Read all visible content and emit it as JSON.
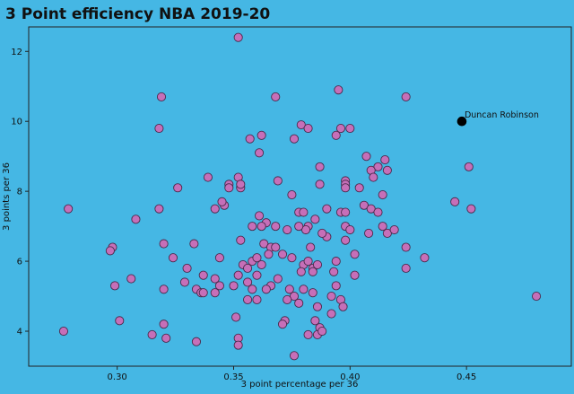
{
  "chart_data": {
    "type": "scatter",
    "title": "3 Point efficiency NBA 2019-20",
    "xlabel": "3 point percentage per 36",
    "ylabel": "3 points per 36",
    "xlim": [
      0.262,
      0.495
    ],
    "ylim": [
      3.0,
      12.7
    ],
    "xticks": [
      {
        "value": 0.3,
        "label": "0.30"
      },
      {
        "value": 0.35,
        "label": "0.35"
      },
      {
        "value": 0.4,
        "label": "0.40"
      },
      {
        "value": 0.45,
        "label": "0.45"
      }
    ],
    "yticks": [
      {
        "value": 4,
        "label": "4"
      },
      {
        "value": 6,
        "label": "6"
      },
      {
        "value": 8,
        "label": "8"
      },
      {
        "value": 10,
        "label": "10"
      },
      {
        "value": 12,
        "label": "12"
      }
    ],
    "grid": false,
    "colors": {
      "background": "#45b7e4",
      "marker": "#c66fb8",
      "marker_edge": "#4a2a4c",
      "highlight": "#000000"
    },
    "highlight": {
      "name": "Duncan Robinson",
      "x": 0.448,
      "y": 10.0
    },
    "points": [
      [
        0.352,
        12.4
      ],
      [
        0.319,
        10.7
      ],
      [
        0.368,
        10.7
      ],
      [
        0.395,
        10.9
      ],
      [
        0.424,
        10.7
      ],
      [
        0.318,
        9.8
      ],
      [
        0.379,
        9.9
      ],
      [
        0.382,
        9.8
      ],
      [
        0.394,
        9.6
      ],
      [
        0.396,
        9.8
      ],
      [
        0.4,
        9.8
      ],
      [
        0.362,
        9.6
      ],
      [
        0.357,
        9.5
      ],
      [
        0.376,
        9.5
      ],
      [
        0.361,
        9.1
      ],
      [
        0.407,
        9.0
      ],
      [
        0.415,
        8.9
      ],
      [
        0.412,
        8.7
      ],
      [
        0.416,
        8.6
      ],
      [
        0.409,
        8.6
      ],
      [
        0.387,
        8.7
      ],
      [
        0.451,
        8.7
      ],
      [
        0.339,
        8.4
      ],
      [
        0.352,
        8.4
      ],
      [
        0.348,
        8.2
      ],
      [
        0.348,
        8.1
      ],
      [
        0.353,
        8.1
      ],
      [
        0.353,
        8.2
      ],
      [
        0.369,
        8.3
      ],
      [
        0.387,
        8.2
      ],
      [
        0.398,
        8.3
      ],
      [
        0.398,
        8.2
      ],
      [
        0.398,
        8.1
      ],
      [
        0.404,
        8.1
      ],
      [
        0.41,
        8.4
      ],
      [
        0.326,
        8.1
      ],
      [
        0.375,
        7.9
      ],
      [
        0.414,
        7.9
      ],
      [
        0.346,
        7.6
      ],
      [
        0.342,
        7.5
      ],
      [
        0.345,
        7.7
      ],
      [
        0.318,
        7.5
      ],
      [
        0.279,
        7.5
      ],
      [
        0.308,
        7.2
      ],
      [
        0.361,
        7.3
      ],
      [
        0.364,
        7.1
      ],
      [
        0.362,
        7.0
      ],
      [
        0.378,
        7.4
      ],
      [
        0.38,
        7.4
      ],
      [
        0.385,
        7.2
      ],
      [
        0.382,
        7.0
      ],
      [
        0.39,
        7.5
      ],
      [
        0.396,
        7.4
      ],
      [
        0.398,
        7.4
      ],
      [
        0.406,
        7.6
      ],
      [
        0.409,
        7.5
      ],
      [
        0.412,
        7.4
      ],
      [
        0.414,
        7.0
      ],
      [
        0.416,
        6.8
      ],
      [
        0.419,
        6.9
      ],
      [
        0.398,
        7.0
      ],
      [
        0.4,
        6.9
      ],
      [
        0.408,
        6.8
      ],
      [
        0.39,
        6.7
      ],
      [
        0.388,
        6.8
      ],
      [
        0.381,
        6.9
      ],
      [
        0.378,
        7.0
      ],
      [
        0.373,
        6.9
      ],
      [
        0.368,
        7.0
      ],
      [
        0.358,
        7.0
      ],
      [
        0.398,
        6.6
      ],
      [
        0.445,
        7.7
      ],
      [
        0.452,
        7.5
      ],
      [
        0.298,
        6.4
      ],
      [
        0.297,
        6.3
      ],
      [
        0.32,
        6.5
      ],
      [
        0.333,
        6.5
      ],
      [
        0.353,
        6.6
      ],
      [
        0.363,
        6.5
      ],
      [
        0.366,
        6.4
      ],
      [
        0.368,
        6.4
      ],
      [
        0.365,
        6.2
      ],
      [
        0.371,
        6.2
      ],
      [
        0.383,
        6.4
      ],
      [
        0.424,
        6.4
      ],
      [
        0.375,
        6.1
      ],
      [
        0.38,
        5.9
      ],
      [
        0.382,
        6.0
      ],
      [
        0.384,
        5.8
      ],
      [
        0.386,
        5.9
      ],
      [
        0.394,
        6.0
      ],
      [
        0.402,
        6.2
      ],
      [
        0.432,
        6.1
      ],
      [
        0.324,
        6.1
      ],
      [
        0.344,
        6.1
      ],
      [
        0.354,
        5.9
      ],
      [
        0.356,
        5.8
      ],
      [
        0.358,
        6.0
      ],
      [
        0.36,
        6.1
      ],
      [
        0.362,
        5.9
      ],
      [
        0.33,
        5.8
      ],
      [
        0.337,
        5.6
      ],
      [
        0.342,
        5.5
      ],
      [
        0.352,
        5.6
      ],
      [
        0.356,
        5.4
      ],
      [
        0.36,
        5.6
      ],
      [
        0.366,
        5.3
      ],
      [
        0.369,
        5.5
      ],
      [
        0.379,
        5.7
      ],
      [
        0.384,
        5.7
      ],
      [
        0.393,
        5.7
      ],
      [
        0.402,
        5.6
      ],
      [
        0.424,
        5.8
      ],
      [
        0.306,
        5.5
      ],
      [
        0.299,
        5.3
      ],
      [
        0.329,
        5.4
      ],
      [
        0.334,
        5.2
      ],
      [
        0.336,
        5.1
      ],
      [
        0.342,
        5.1
      ],
      [
        0.344,
        5.3
      ],
      [
        0.35,
        5.3
      ],
      [
        0.358,
        5.2
      ],
      [
        0.364,
        5.2
      ],
      [
        0.374,
        5.2
      ],
      [
        0.376,
        5.0
      ],
      [
        0.38,
        5.2
      ],
      [
        0.384,
        5.1
      ],
      [
        0.394,
        5.3
      ],
      [
        0.392,
        5.0
      ],
      [
        0.396,
        4.9
      ],
      [
        0.32,
        5.2
      ],
      [
        0.337,
        5.1
      ],
      [
        0.356,
        4.9
      ],
      [
        0.36,
        4.9
      ],
      [
        0.373,
        4.9
      ],
      [
        0.378,
        4.8
      ],
      [
        0.386,
        4.7
      ],
      [
        0.392,
        4.5
      ],
      [
        0.397,
        4.7
      ],
      [
        0.48,
        5.0
      ],
      [
        0.372,
        4.3
      ],
      [
        0.385,
        4.3
      ],
      [
        0.387,
        4.1
      ],
      [
        0.351,
        4.4
      ],
      [
        0.301,
        4.3
      ],
      [
        0.32,
        4.2
      ],
      [
        0.315,
        3.9
      ],
      [
        0.321,
        3.8
      ],
      [
        0.334,
        3.7
      ],
      [
        0.352,
        3.8
      ],
      [
        0.352,
        3.6
      ],
      [
        0.371,
        4.2
      ],
      [
        0.382,
        3.9
      ],
      [
        0.386,
        3.9
      ],
      [
        0.388,
        4.0
      ],
      [
        0.376,
        3.3
      ],
      [
        0.277,
        4.0
      ]
    ]
  }
}
